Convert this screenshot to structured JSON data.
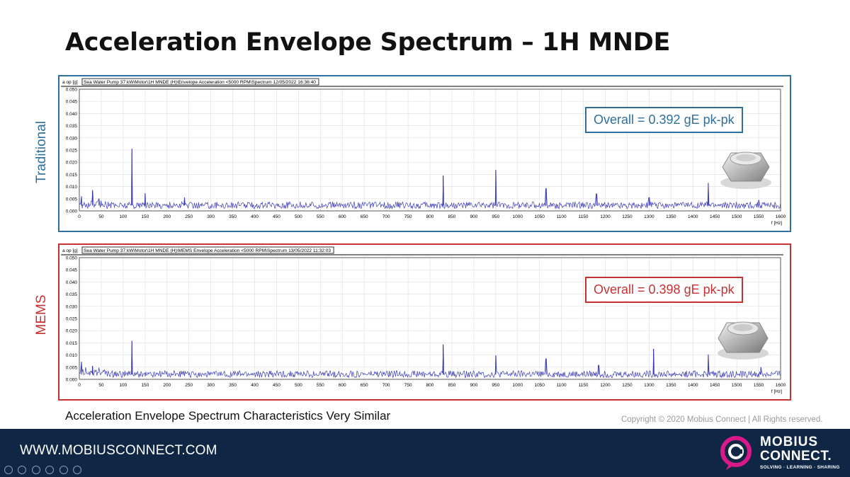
{
  "slide": {
    "title": "Acceleration Envelope Spectrum – 1H MNDE",
    "caption": "Acceleration Envelope Spectrum Characteristics Very Similar",
    "copyright": "Copyright © 2020 Mobius Connect | All Rights reserved.",
    "footer_url": "WWW.MOBIUSCONNECT.COM",
    "logo": {
      "line1": "MOBIUS",
      "line2": "CONNECT.",
      "tagline": "SOLVING · LEARNING · SHARING"
    }
  },
  "colors": {
    "traditional": "#2e6f9e",
    "mems": "#c63232",
    "trace": "#3a3ab8",
    "footer": "#0f2744",
    "logo_accent": "#d7198a"
  },
  "chart_data": [
    {
      "type": "line",
      "name": "Traditional",
      "side_label": "Traditional",
      "header": "Sea Water Pump 37 kW\\Motor\\1H MNDE (H)\\Envelope Acceleration <5000 RPM\\Spectrum 12/05/2022 16:36:40",
      "ylabel": "a op [g]",
      "xlabel": "f [Hz]",
      "overall": "Overall = 0.392 gE pk-pk",
      "xlim": [
        0,
        1600
      ],
      "ylim": [
        0,
        0.05
      ],
      "x_ticks": [
        0,
        50,
        100,
        150,
        200,
        250,
        300,
        350,
        400,
        450,
        500,
        550,
        600,
        650,
        700,
        750,
        800,
        850,
        900,
        950,
        1000,
        1050,
        1100,
        1150,
        1200,
        1250,
        1300,
        1350,
        1400,
        1450,
        1500,
        1550,
        1600
      ],
      "y_ticks": [
        "0.000",
        "0.005",
        "0.010",
        "0.015",
        "0.020",
        "0.025",
        "0.030",
        "0.035",
        "0.040",
        "0.045",
        "0.050"
      ],
      "grid": true,
      "baseline": 0.0022,
      "peaks": [
        {
          "x": 5,
          "y": 0.006
        },
        {
          "x": 30,
          "y": 0.0085
        },
        {
          "x": 45,
          "y": 0.005
        },
        {
          "x": 120,
          "y": 0.0255
        },
        {
          "x": 150,
          "y": 0.0072
        },
        {
          "x": 240,
          "y": 0.0055
        },
        {
          "x": 830,
          "y": 0.0145
        },
        {
          "x": 950,
          "y": 0.0168
        },
        {
          "x": 1065,
          "y": 0.0092
        },
        {
          "x": 1180,
          "y": 0.007
        },
        {
          "x": 1300,
          "y": 0.0055
        },
        {
          "x": 1435,
          "y": 0.0115
        },
        {
          "x": 1550,
          "y": 0.0045
        }
      ]
    },
    {
      "type": "line",
      "name": "MEMS",
      "side_label": "MEMS",
      "header": "Sea Water Pump 37 kW\\Motor\\1H MNDE (H)\\MEMS Envelope Acceleration <5000 RPM\\Spectrum 13/05/2022 11:32:03",
      "ylabel": "a op [g]",
      "xlabel": "f [Hz]",
      "overall": "Overall = 0.398 gE pk-pk",
      "xlim": [
        0,
        1600
      ],
      "ylim": [
        0,
        0.05
      ],
      "x_ticks": [
        0,
        50,
        100,
        150,
        200,
        250,
        300,
        350,
        400,
        450,
        500,
        550,
        600,
        650,
        700,
        750,
        800,
        850,
        900,
        950,
        1000,
        1050,
        1100,
        1150,
        1200,
        1250,
        1300,
        1350,
        1400,
        1450,
        1500,
        1550,
        1600
      ],
      "y_ticks": [
        "0.000",
        "0.005",
        "0.010",
        "0.015",
        "0.020",
        "0.025",
        "0.030",
        "0.035",
        "0.040",
        "0.045",
        "0.050"
      ],
      "grid": true,
      "baseline": 0.002,
      "peaks": [
        {
          "x": 5,
          "y": 0.0072
        },
        {
          "x": 30,
          "y": 0.0055
        },
        {
          "x": 120,
          "y": 0.0158
        },
        {
          "x": 830,
          "y": 0.0143
        },
        {
          "x": 950,
          "y": 0.0098
        },
        {
          "x": 1065,
          "y": 0.0085
        },
        {
          "x": 1185,
          "y": 0.0058
        },
        {
          "x": 1310,
          "y": 0.0125
        },
        {
          "x": 1435,
          "y": 0.0102
        },
        {
          "x": 1555,
          "y": 0.005
        }
      ]
    }
  ]
}
